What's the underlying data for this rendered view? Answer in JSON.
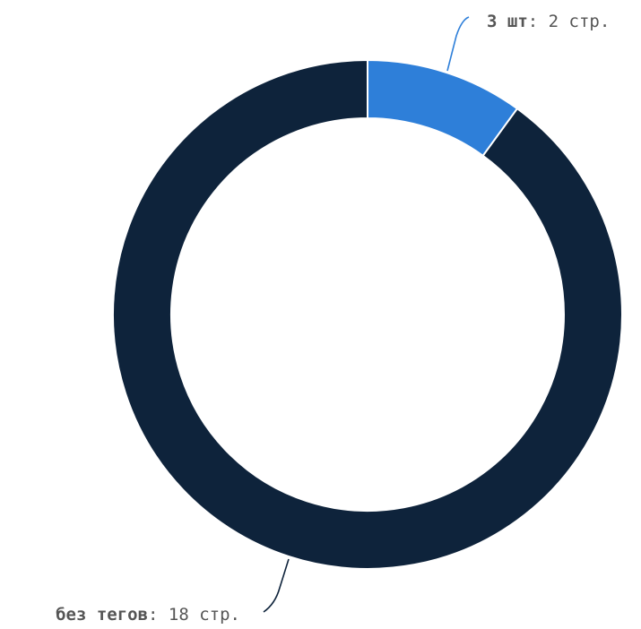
{
  "chart_data": {
    "type": "pie",
    "variant": "donut",
    "title": "",
    "slices": [
      {
        "name": "3 шт",
        "value": 2,
        "unit": "стр.",
        "color": "#2e7fd9"
      },
      {
        "name": "без тегов",
        "value": 18,
        "unit": "стр.",
        "color": "#0e233b"
      }
    ],
    "label_separator": ": ",
    "legend": "none (labels on leader lines)"
  }
}
